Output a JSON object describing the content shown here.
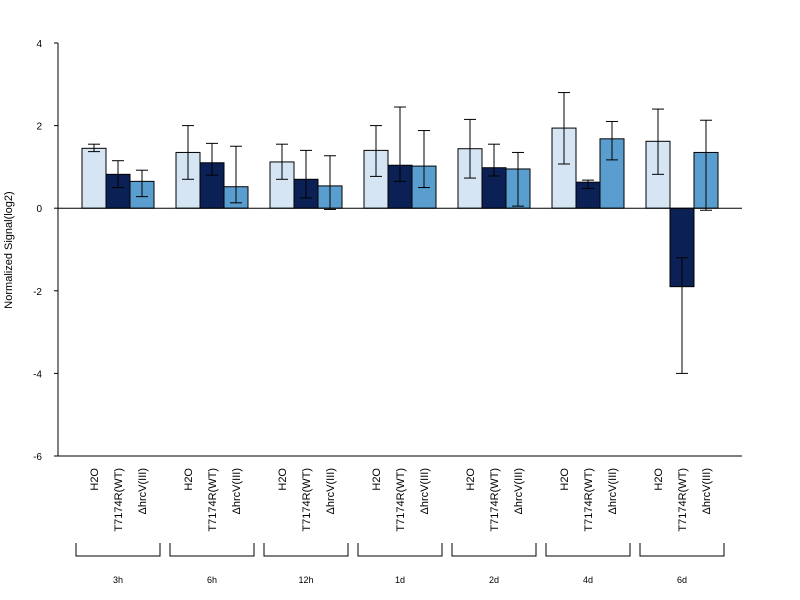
{
  "chart_data": {
    "type": "bar",
    "ylabel": "Normalized Signal(log2)",
    "ylim": [
      -6,
      4
    ],
    "yticks": [
      -6,
      -4,
      -2,
      0,
      2,
      4
    ],
    "series_labels": [
      "H2O",
      "T7174R(WT)",
      "ΔhrcV(III)"
    ],
    "series_colors": [
      "#d6e5f4",
      "#0b2155",
      "#5a9ecf"
    ],
    "groups": [
      {
        "label": "3h",
        "values": [
          1.45,
          0.82,
          0.65
        ],
        "errors": [
          [
            1.37,
            1.55
          ],
          [
            0.5,
            1.15
          ],
          [
            0.28,
            0.92
          ]
        ]
      },
      {
        "label": "6h",
        "values": [
          1.35,
          1.1,
          0.52
        ],
        "errors": [
          [
            0.7,
            2.0
          ],
          [
            0.8,
            1.57
          ],
          [
            0.13,
            1.5
          ]
        ]
      },
      {
        "label": "12h",
        "values": [
          1.12,
          0.7,
          0.54
        ],
        "errors": [
          [
            0.7,
            1.55
          ],
          [
            0.25,
            1.4
          ],
          [
            -0.03,
            1.27
          ]
        ]
      },
      {
        "label": "1d",
        "values": [
          1.4,
          1.04,
          1.02
        ],
        "errors": [
          [
            0.77,
            2.0
          ],
          [
            0.65,
            2.45
          ],
          [
            0.5,
            1.88
          ]
        ]
      },
      {
        "label": "2d",
        "values": [
          1.44,
          0.98,
          0.95
        ],
        "errors": [
          [
            0.73,
            2.15
          ],
          [
            0.78,
            1.55
          ],
          [
            0.05,
            1.35
          ]
        ]
      },
      {
        "label": "4d",
        "values": [
          1.94,
          0.63,
          1.68
        ],
        "errors": [
          [
            1.07,
            2.8
          ],
          [
            0.48,
            0.68
          ],
          [
            1.17,
            2.1
          ]
        ]
      },
      {
        "label": "6d",
        "values": [
          1.62,
          -1.9,
          1.35
        ],
        "errors": [
          [
            0.82,
            2.4
          ],
          [
            -4.0,
            -1.2
          ],
          [
            -0.05,
            2.13
          ]
        ]
      }
    ]
  }
}
